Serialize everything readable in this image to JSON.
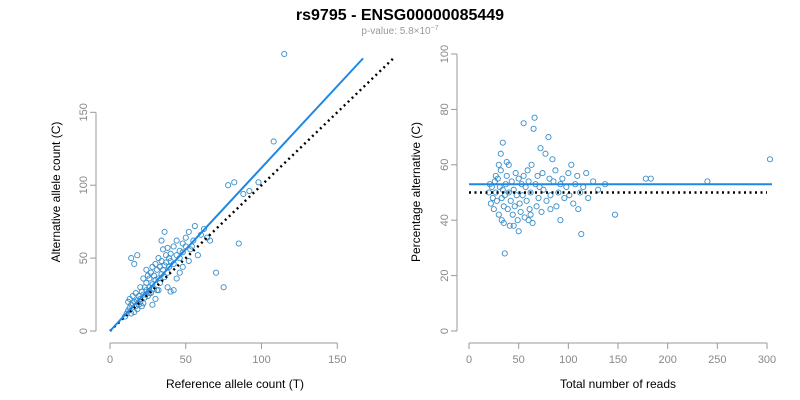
{
  "title": "rs9795 - ENSG00000085449",
  "subtitle": {
    "prefix": "p-value: 5.8×10",
    "exponent": "−7"
  },
  "colors": {
    "points": "#3a8ec8",
    "fit_line": "#1f88e5",
    "reference_line": "#000000",
    "axis": "#9a9a9a"
  },
  "chart_data": [
    {
      "type": "scatter",
      "name": "allele-counts",
      "xlabel": "Reference allele count (T)",
      "ylabel": "Alternative allele count (C)",
      "xlim": [
        0,
        165
      ],
      "ylim": [
        0,
        190
      ],
      "xticks": [
        0,
        50,
        100,
        150
      ],
      "yticks": [
        0,
        50,
        100,
        150
      ],
      "fit_line": {
        "from": [
          0,
          0
        ],
        "to": [
          167,
          187
        ]
      },
      "reference_line": {
        "from": [
          0,
          0
        ],
        "to": [
          187,
          187
        ],
        "style": "dotted"
      },
      "points": [
        [
          10,
          10
        ],
        [
          11,
          12
        ],
        [
          12,
          14
        ],
        [
          12,
          20
        ],
        [
          13,
          22
        ],
        [
          13,
          16
        ],
        [
          14,
          18
        ],
        [
          14,
          12
        ],
        [
          15,
          24
        ],
        [
          15,
          19
        ],
        [
          16,
          20
        ],
        [
          16,
          13
        ],
        [
          17,
          17
        ],
        [
          17,
          26
        ],
        [
          18,
          21
        ],
        [
          18,
          15
        ],
        [
          19,
          18
        ],
        [
          19,
          24
        ],
        [
          20,
          22
        ],
        [
          20,
          20
        ],
        [
          21,
          17
        ],
        [
          21,
          27
        ],
        [
          22,
          25
        ],
        [
          22,
          19
        ],
        [
          23,
          30
        ],
        [
          23,
          23
        ],
        [
          24,
          28
        ],
        [
          24,
          33
        ],
        [
          25,
          24
        ],
        [
          25,
          38
        ],
        [
          26,
          30
        ],
        [
          26,
          36
        ],
        [
          27,
          26
        ],
        [
          27,
          40
        ],
        [
          28,
          44
        ],
        [
          28,
          32
        ],
        [
          29,
          29
        ],
        [
          29,
          38
        ],
        [
          30,
          46
        ],
        [
          30,
          35
        ],
        [
          31,
          28
        ],
        [
          31,
          42
        ],
        [
          32,
          50
        ],
        [
          32,
          36
        ],
        [
          33,
          33
        ],
        [
          33,
          44
        ],
        [
          34,
          48
        ],
        [
          34,
          39
        ],
        [
          35,
          56
        ],
        [
          35,
          42
        ],
        [
          36,
          45
        ],
        [
          36,
          37
        ],
        [
          37,
          52
        ],
        [
          37,
          47
        ],
        [
          38,
          40
        ],
        [
          38,
          57
        ],
        [
          39,
          50
        ],
        [
          39,
          44
        ],
        [
          40,
          53
        ],
        [
          40,
          48
        ],
        [
          42,
          46
        ],
        [
          42,
          58
        ],
        [
          44,
          52
        ],
        [
          44,
          62
        ],
        [
          46,
          55
        ],
        [
          46,
          50
        ],
        [
          48,
          60
        ],
        [
          48,
          54
        ],
        [
          50,
          58
        ],
        [
          50,
          64
        ],
        [
          52,
          68
        ],
        [
          53,
          56
        ],
        [
          55,
          62
        ],
        [
          56,
          72
        ],
        [
          58,
          52
        ],
        [
          60,
          66
        ],
        [
          62,
          70
        ],
        [
          64,
          64
        ],
        [
          66,
          62
        ],
        [
          70,
          40
        ],
        [
          75,
          30
        ],
        [
          78,
          100
        ],
        [
          82,
          102
        ],
        [
          85,
          60
        ],
        [
          88,
          94
        ],
        [
          92,
          96
        ],
        [
          98,
          102
        ],
        [
          108,
          130
        ],
        [
          115,
          190
        ],
        [
          14,
          50
        ],
        [
          16,
          46
        ],
        [
          18,
          52
        ],
        [
          20,
          30
        ],
        [
          22,
          36
        ],
        [
          24,
          42
        ],
        [
          26,
          26
        ],
        [
          28,
          18
        ],
        [
          30,
          22
        ],
        [
          32,
          28
        ],
        [
          34,
          62
        ],
        [
          36,
          68
        ],
        [
          38,
          30
        ],
        [
          40,
          27
        ],
        [
          42,
          28
        ],
        [
          44,
          36
        ],
        [
          46,
          40
        ],
        [
          48,
          44
        ],
        [
          52,
          48
        ],
        [
          54,
          58
        ]
      ]
    },
    {
      "type": "scatter",
      "name": "percentage-alternative",
      "xlabel": "Total number of reads",
      "ylabel": "Percentage alternative (C)",
      "xlim": [
        0,
        300
      ],
      "ylim": [
        0,
        100
      ],
      "xticks": [
        0,
        50,
        100,
        150,
        200,
        250,
        300
      ],
      "yticks": [
        0,
        20,
        40,
        60,
        80,
        100
      ],
      "fit_line": {
        "from": [
          0,
          53
        ],
        "to": [
          305,
          53
        ]
      },
      "reference_line": {
        "from": [
          0,
          50
        ],
        "to": [
          300,
          50
        ],
        "style": "dotted"
      },
      "points": [
        [
          20,
          50
        ],
        [
          21,
          53
        ],
        [
          22,
          46
        ],
        [
          23,
          52
        ],
        [
          24,
          48
        ],
        [
          25,
          44
        ],
        [
          26,
          54
        ],
        [
          27,
          50
        ],
        [
          28,
          47
        ],
        [
          29,
          55
        ],
        [
          30,
          60
        ],
        [
          30,
          42
        ],
        [
          31,
          52
        ],
        [
          32,
          58
        ],
        [
          32,
          64
        ],
        [
          33,
          48
        ],
        [
          33,
          40
        ],
        [
          34,
          68
        ],
        [
          34,
          51
        ],
        [
          35,
          45
        ],
        [
          36,
          49
        ],
        [
          36,
          28
        ],
        [
          37,
          53
        ],
        [
          38,
          61
        ],
        [
          38,
          56
        ],
        [
          39,
          44
        ],
        [
          40,
          50
        ],
        [
          40,
          60
        ],
        [
          41,
          38
        ],
        [
          42,
          47
        ],
        [
          43,
          54
        ],
        [
          44,
          42
        ],
        [
          45,
          51
        ],
        [
          46,
          45
        ],
        [
          47,
          57
        ],
        [
          48,
          49
        ],
        [
          49,
          40
        ],
        [
          50,
          55
        ],
        [
          51,
          46
        ],
        [
          52,
          43
        ],
        [
          53,
          53
        ],
        [
          54,
          49
        ],
        [
          55,
          75
        ],
        [
          55,
          56
        ],
        [
          56,
          41
        ],
        [
          57,
          52
        ],
        [
          58,
          47
        ],
        [
          59,
          58
        ],
        [
          60,
          54
        ],
        [
          61,
          44
        ],
        [
          62,
          50
        ],
        [
          63,
          60
        ],
        [
          64,
          39
        ],
        [
          65,
          73
        ],
        [
          66,
          77
        ],
        [
          67,
          53
        ],
        [
          68,
          45
        ],
        [
          69,
          56
        ],
        [
          70,
          48
        ],
        [
          71,
          52
        ],
        [
          72,
          66
        ],
        [
          73,
          43
        ],
        [
          74,
          57
        ],
        [
          75,
          51
        ],
        [
          77,
          64
        ],
        [
          78,
          47
        ],
        [
          80,
          70
        ],
        [
          81,
          55
        ],
        [
          82,
          49
        ],
        [
          84,
          62
        ],
        [
          85,
          54
        ],
        [
          87,
          58
        ],
        [
          88,
          45
        ],
        [
          90,
          50
        ],
        [
          92,
          53
        ],
        [
          94,
          55
        ],
        [
          96,
          48
        ],
        [
          98,
          52
        ],
        [
          100,
          57
        ],
        [
          101,
          49
        ],
        [
          103,
          60
        ],
        [
          105,
          46
        ],
        [
          107,
          53
        ],
        [
          109,
          56
        ],
        [
          110,
          44
        ],
        [
          112,
          50
        ],
        [
          113,
          35
        ],
        [
          115,
          52
        ],
        [
          118,
          57
        ],
        [
          120,
          48
        ],
        [
          125,
          54
        ],
        [
          130,
          51
        ],
        [
          137,
          53
        ],
        [
          147,
          42
        ],
        [
          178,
          55
        ],
        [
          183,
          55
        ],
        [
          240,
          54
        ],
        [
          303,
          62
        ],
        [
          60,
          40
        ],
        [
          35,
          39
        ],
        [
          45,
          38
        ],
        [
          62,
          42
        ],
        [
          27,
          56
        ],
        [
          82,
          44
        ],
        [
          92,
          40
        ],
        [
          50,
          36
        ]
      ]
    }
  ]
}
